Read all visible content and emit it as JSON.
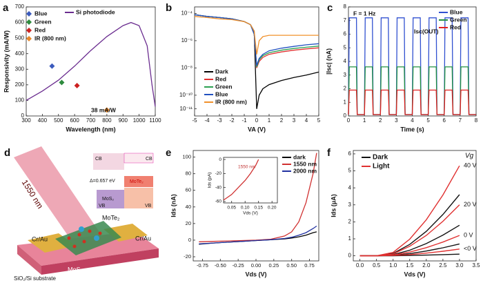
{
  "chart_data": [
    {
      "panel": "a",
      "type": "line",
      "xlabel": "Wavelength (nm)",
      "ylabel": "Responsivity (mA/W)",
      "xlim": [
        300,
        1100
      ],
      "xticks": [
        300,
        400,
        500,
        600,
        700,
        800,
        900,
        1000,
        1100
      ],
      "ylim": [
        0,
        700
      ],
      "yticks": [
        0,
        100,
        200,
        300,
        400,
        500,
        600,
        700
      ],
      "annotations": [
        "38 mA/W"
      ],
      "series": [
        {
          "name": "Blue",
          "color": "#3b5bbd",
          "type": "scatter",
          "x": [
            460
          ],
          "values": [
            320
          ]
        },
        {
          "name": "Green",
          "color": "#2e8b3e",
          "type": "scatter",
          "x": [
            520
          ],
          "values": [
            215
          ]
        },
        {
          "name": "Red",
          "color": "#cc2222",
          "type": "scatter",
          "x": [
            615
          ],
          "values": [
            195
          ]
        },
        {
          "name": "IR (800 nm)",
          "color": "#e8892c",
          "type": "scatter",
          "x": [
            800
          ],
          "values": [
            38
          ]
        },
        {
          "name": "Si photodiode",
          "color": "#6a2c8f",
          "type": "line",
          "x": [
            300,
            400,
            500,
            600,
            700,
            800,
            900,
            950,
            1000,
            1050,
            1080,
            1100
          ],
          "values": [
            100,
            160,
            230,
            320,
            420,
            510,
            580,
            600,
            580,
            450,
            200,
            60
          ]
        }
      ]
    },
    {
      "panel": "b",
      "type": "line",
      "xlabel": "VA (V)",
      "ylog": true,
      "xlim": [
        -5,
        5
      ],
      "xticks": [
        -5,
        -4,
        -3,
        -2,
        -1,
        0,
        1,
        2,
        3,
        4,
        5
      ],
      "ylim": [
        3e-12,
        0.0003
      ],
      "yticks": [
        {
          "value": 0.0001,
          "label": "10⁻⁴"
        },
        {
          "value": 1e-06,
          "label": "10⁻⁶"
        },
        {
          "value": 1e-08,
          "label": "10⁻⁸"
        },
        {
          "value": 1e-10,
          "label": "10⁻¹⁰"
        },
        {
          "value": 1e-11,
          "label": "10⁻¹¹"
        }
      ],
      "x": [
        -5,
        -4,
        -3,
        -2,
        -1,
        -0.5,
        -0.2,
        0,
        0.2,
        0.5,
        1,
        2,
        3,
        4,
        5
      ],
      "series": [
        {
          "name": "Dark",
          "color": "#000000",
          "values": [
            8e-05,
            6e-05,
            5e-05,
            4e-05,
            2.5e-05,
            1.5e-05,
            5e-06,
            1e-11,
            1e-10,
            3e-10,
            6e-10,
            1.2e-09,
            2e-09,
            3e-09,
            5e-09
          ]
        },
        {
          "name": "Red",
          "color": "#e03030",
          "values": [
            8e-05,
            6e-05,
            5e-05,
            4e-05,
            2.5e-05,
            1.5e-05,
            3e-06,
            1e-08,
            3e-08,
            6e-08,
            1e-07,
            1.5e-07,
            2e-07,
            2.5e-07,
            3e-07
          ]
        },
        {
          "name": "Green",
          "color": "#2aa050",
          "values": [
            8e-05,
            6e-05,
            5e-05,
            4e-05,
            2.5e-05,
            1.5e-05,
            3e-06,
            1.2e-08,
            4e-08,
            8e-08,
            1.3e-07,
            2e-07,
            2.7e-07,
            3.3e-07,
            4e-07
          ]
        },
        {
          "name": "Blue",
          "color": "#2050c0",
          "values": [
            8e-05,
            6e-05,
            5e-05,
            4e-05,
            2.5e-05,
            1.5e-05,
            3e-06,
            1.5e-08,
            5e-08,
            1e-07,
            1.8e-07,
            2.8e-07,
            3.8e-07,
            5e-07,
            6e-07
          ]
        },
        {
          "name": "IR (800 nm)",
          "color": "#f0902a",
          "values": [
            6e-05,
            5e-05,
            4e-05,
            3.5e-05,
            2.5e-05,
            1.5e-05,
            5e-06,
            1e-07,
            1e-06,
            2e-06,
            2.5e-06,
            2.5e-06,
            2.5e-06,
            2.5e-06,
            2.5e-06
          ]
        }
      ]
    },
    {
      "panel": "c",
      "type": "line",
      "xlabel": "Time (s)",
      "ylabel": "|Isc| (nA)",
      "xlim": [
        0,
        8
      ],
      "xticks": [
        0,
        1,
        2,
        3,
        4,
        5,
        6,
        7,
        8
      ],
      "ylim": [
        0,
        8
      ],
      "yticks": [
        0,
        1,
        2,
        3,
        4,
        5,
        6,
        7,
        8
      ],
      "annotations": [
        "F = 1 Hz",
        "Isc(OUT)"
      ],
      "x": [
        0,
        0.05,
        0.5,
        0.55,
        1,
        1.05,
        1.5,
        1.55,
        2,
        2.05,
        2.5,
        2.55,
        3,
        3.05,
        3.5,
        3.55,
        4,
        4.05,
        4.5,
        4.55,
        5,
        5.05,
        5.5,
        5.55,
        6,
        6.05,
        6.5,
        6.55,
        7,
        7.05,
        7.5,
        7.55,
        8
      ],
      "series": [
        {
          "name": "Blue",
          "color": "#3050d0",
          "values": [
            0.1,
            7.2,
            7.2,
            0.1,
            0.1,
            7.2,
            7.2,
            0.1,
            0.1,
            7.2,
            7.2,
            0.1,
            0.1,
            7.2,
            7.2,
            0.1,
            0.1,
            7.2,
            7.2,
            0.1,
            0.1,
            7.2,
            7.2,
            0.1,
            0.1,
            7.2,
            7.2,
            0.1,
            0.1,
            7.2,
            7.2,
            0.1,
            0.1
          ]
        },
        {
          "name": "Green",
          "color": "#209040",
          "values": [
            0.1,
            3.6,
            3.6,
            0.1,
            0.1,
            3.6,
            3.6,
            0.1,
            0.1,
            3.6,
            3.6,
            0.1,
            0.1,
            3.6,
            3.6,
            0.1,
            0.1,
            3.6,
            3.6,
            0.1,
            0.1,
            3.6,
            3.6,
            0.1,
            0.1,
            3.6,
            3.6,
            0.1,
            0.1,
            3.6,
            3.6,
            0.1,
            0.1
          ]
        },
        {
          "name": "Red",
          "color": "#e02020",
          "values": [
            0.1,
            1.9,
            1.9,
            0.1,
            0.1,
            1.9,
            1.9,
            0.1,
            0.1,
            1.9,
            1.9,
            0.1,
            0.1,
            1.9,
            1.9,
            0.1,
            0.1,
            1.9,
            1.9,
            0.1,
            0.1,
            1.9,
            1.9,
            0.1,
            0.1,
            1.9,
            1.9,
            0.1,
            0.1,
            1.9,
            1.9,
            0.1,
            0.1
          ]
        }
      ]
    },
    {
      "panel": "e",
      "type": "line",
      "xlabel": "Vds (V)",
      "ylabel": "Ids (nA)",
      "xlim": [
        -0.88,
        0.88
      ],
      "xticks": [
        -0.75,
        {
          "value": -0.5,
          "label": "-0.50"
        },
        -0.25,
        {
          "value": 0,
          "label": "0.00"
        },
        0.25,
        {
          "value": 0.5,
          "label": "0.50"
        },
        0.75
      ],
      "ylim": [
        -25,
        108
      ],
      "yticks": [
        -20,
        0,
        20,
        40,
        60,
        80,
        100
      ],
      "x": [
        -0.8,
        -0.6,
        -0.4,
        -0.2,
        0,
        0.2,
        0.4,
        0.5,
        0.6,
        0.7,
        0.8,
        0.85
      ],
      "series": [
        {
          "name": "dark",
          "color": "#000000",
          "values": [
            -5,
            -3.5,
            -2.5,
            -1.5,
            -0.5,
            0.5,
            1.5,
            2.5,
            4,
            6,
            9,
            10
          ]
        },
        {
          "name": "1550 nm",
          "color": "#d03030",
          "values": [
            -2,
            -1.5,
            -1,
            -0.5,
            0,
            1,
            5,
            10,
            22,
            45,
            80,
            105
          ]
        },
        {
          "name": "2000 nm",
          "color": "#2030a0",
          "values": [
            -4.5,
            -3.5,
            -2.5,
            -1.5,
            -0.5,
            0.5,
            2,
            3.5,
            6,
            9,
            14,
            17
          ]
        }
      ]
    },
    {
      "type": "line",
      "xlabel": "Vds (V)",
      "ylabel": "Ids (pA)",
      "xlim": [
        0.02,
        0.22
      ],
      "xticks": [
        0.05,
        {
          "value": 0.1,
          "label": "0.10"
        },
        0.15,
        {
          "value": 0.2,
          "label": "0.20"
        }
      ],
      "ylim": [
        -62,
        3
      ],
      "yticks": [
        -60,
        -40,
        -20,
        0
      ],
      "annotations": [
        "1550 nm"
      ],
      "x": [
        0.02,
        0.05,
        0.08,
        0.1,
        0.12,
        0.14,
        0.15
      ],
      "series": [
        {
          "color": "#d03030",
          "values": [
            -58,
            -50,
            -38,
            -30,
            -20,
            -8,
            0
          ]
        }
      ]
    },
    {
      "panel": "f",
      "type": "line",
      "xlabel": "Vds (V)",
      "ylabel": "Ids (μA)",
      "xlim": [
        -0.2,
        3.5
      ],
      "xticks": [
        {
          "value": 0,
          "label": "0.0"
        },
        0.5,
        {
          "value": 1,
          "label": "1.0"
        },
        1.5,
        {
          "value": 2,
          "label": "2.0"
        },
        2.5,
        {
          "value": 3,
          "label": "3.0"
        },
        3.5
      ],
      "ylim": [
        -0.3,
        6.2
      ],
      "yticks": [
        0,
        1,
        2,
        3,
        4,
        5,
        6
      ],
      "x": [
        0,
        0.5,
        1,
        1.5,
        2,
        2.5,
        3
      ],
      "curve_label_title": "Vg",
      "curve_labels": [
        "40 V",
        "20 V",
        "0 V",
        "<0 V"
      ],
      "series": [
        {
          "name": "Dark",
          "color": "#111111",
          "curves": [
            [
              0,
              0,
              0.14,
              0.67,
              1.44,
              2.43,
              3.6
            ],
            [
              0,
              0,
              0.07,
              0.33,
              0.72,
              1.22,
              1.8
            ],
            [
              0,
              0,
              0.03,
              0.13,
              0.28,
              0.47,
              0.7
            ],
            [
              0,
              0,
              0,
              0.02,
              0.04,
              0.07,
              0.1
            ]
          ]
        },
        {
          "name": "Light",
          "color": "#e03030",
          "curves": [
            [
              0,
              0,
              0.2,
              0.98,
              2.12,
              3.58,
              5.3
            ],
            [
              0,
              0,
              0.11,
              0.56,
              1.2,
              2.03,
              3.0
            ],
            [
              0,
              0,
              0.05,
              0.22,
              0.48,
              0.81,
              1.2
            ],
            [
              0,
              0,
              0.02,
              0.07,
              0.16,
              0.27,
              0.4
            ]
          ]
        }
      ]
    }
  ],
  "panel_d": {
    "panel": "d",
    "beam": "1550 nm",
    "labels": {
      "mote2": "MoTe₂",
      "cr_au_left": "Cr/Au",
      "cr_au_right": "Cr/Au",
      "mos2": "MoS₂",
      "substrate": "SiO₂/Si substrate"
    },
    "inset": {
      "cb_left": "CB",
      "cb_right": "CB",
      "vb_left": "VB",
      "vb_right": "VB",
      "gap": "Δ=0.657 eV",
      "mos2": "MoS₂",
      "mote2": "MoTe₂"
    }
  }
}
